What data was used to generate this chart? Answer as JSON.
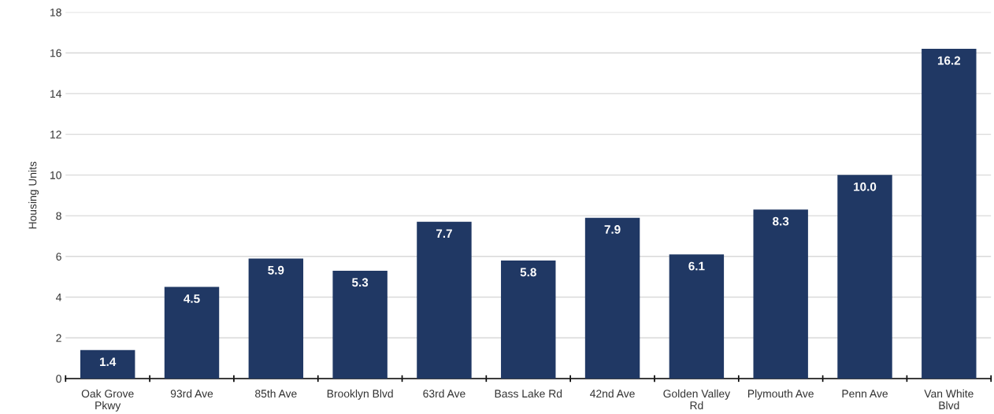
{
  "chart_data": {
    "type": "bar",
    "ylabel": "Housing Units",
    "categories": [
      "Oak Grove Pkwy",
      "93rd Ave",
      "85th Ave",
      "Brooklyn Blvd",
      "63rd Ave",
      "Bass Lake Rd",
      "42nd Ave",
      "Golden Valley Rd",
      "Plymouth Ave",
      "Penn Ave",
      "Van White Blvd"
    ],
    "values": [
      1.4,
      4.5,
      5.9,
      5.3,
      7.7,
      5.8,
      7.9,
      6.1,
      8.3,
      10.0,
      16.2
    ],
    "value_labels": [
      "1.4",
      "4.5",
      "5.9",
      "5.3",
      "7.7",
      "5.8",
      "7.9",
      "6.1",
      "8.3",
      "10.0",
      "16.2"
    ],
    "color": "#203864",
    "ylim": [
      0,
      18
    ],
    "yticks": [
      0,
      2,
      4,
      6,
      8,
      10,
      12,
      14,
      16,
      18
    ],
    "grid": "y"
  }
}
